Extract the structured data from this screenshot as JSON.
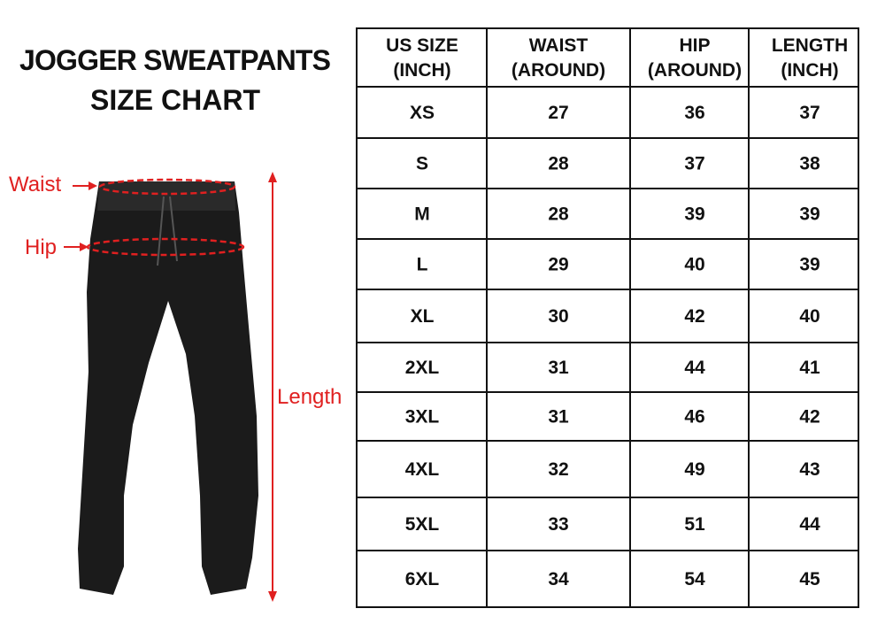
{
  "title": [
    "JOGGER SWEATPANTS",
    "SIZE CHART"
  ],
  "labels": {
    "waist": "Waist",
    "hip": "Hip",
    "length": "Length"
  },
  "table": {
    "header": [
      [
        "US SIZE",
        "(INCH)"
      ],
      [
        "WAIST",
        "(AROUND)"
      ],
      [
        "HIP",
        "(AROUND)"
      ],
      [
        "LENGTH",
        "(INCH)"
      ]
    ],
    "rows": [
      [
        "XS",
        27,
        36,
        37
      ],
      [
        "S",
        28,
        37,
        38
      ],
      [
        "M",
        28,
        39,
        39
      ],
      [
        "L",
        29,
        40,
        39
      ],
      [
        "XL",
        30,
        42,
        40
      ],
      [
        "2XL",
        31,
        44,
        41
      ],
      [
        "3XL",
        31,
        46,
        42
      ],
      [
        "4XL",
        32,
        49,
        43
      ],
      [
        "5XL",
        33,
        51,
        44
      ],
      [
        "6XL",
        34,
        54,
        45
      ]
    ]
  }
}
